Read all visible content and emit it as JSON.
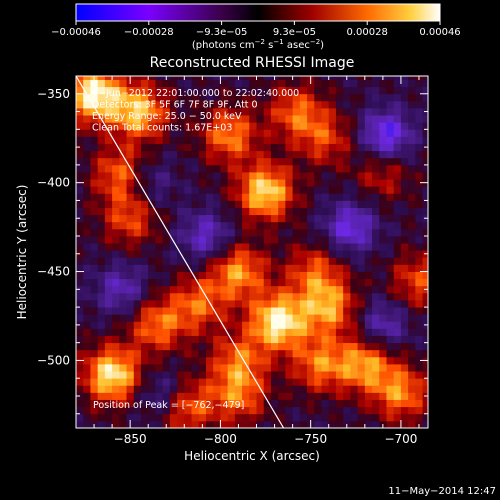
{
  "chart_data": {
    "type": "heatmap",
    "title": "Reconstructed RHESSI Image",
    "xlabel": "Heliocentric X (arcsec)",
    "ylabel": "Heliocentric Y (arcsec)",
    "xlim": [
      -880,
      -685
    ],
    "ylim": [
      -538,
      -340
    ],
    "x_ticks": [
      {
        "value": -850,
        "label": "−850"
      },
      {
        "value": -800,
        "label": "−800"
      },
      {
        "value": -750,
        "label": "−750"
      },
      {
        "value": -700,
        "label": "−700"
      }
    ],
    "y_ticks": [
      {
        "value": -350,
        "label": "−350"
      },
      {
        "value": -400,
        "label": "−400"
      },
      {
        "value": -450,
        "label": "−450"
      },
      {
        "value": -500,
        "label": "−500"
      }
    ],
    "colorbar": {
      "range": [
        -0.00046,
        0.00046
      ],
      "tick_labels": [
        "−0.00046",
        "−0.00028",
        "−9.3e−05",
        "9.3e−05",
        "0.00028",
        "0.00046"
      ],
      "unit_prefix": "(photons cm",
      "unit_exp1": "−2",
      "unit_mid": " s",
      "unit_exp2": "−1",
      "unit_mid2": " asec",
      "unit_exp3": "−2",
      "unit_suffix": ")"
    },
    "annotations": [
      "7−Jun−2012 22:01:00.000 to 22:02:40.000",
      "Detectors: 3F 5F 6F 7F 8F 9F, Att 0",
      "Energy Range: 25.0 − 50.0 keV",
      "Clean     Total counts: 1.67E+03"
    ],
    "peak_label": "Position of Peak = [−762,−479]",
    "peak": [
      -762,
      -479
    ],
    "limb_line": [
      [
        -880,
        -340
      ],
      [
        -765,
        -538
      ]
    ],
    "hot_spots": [
      {
        "x": -870,
        "y": -350,
        "v": 1.0
      },
      {
        "x": -845,
        "y": -360,
        "v": 0.8
      },
      {
        "x": -855,
        "y": -395,
        "v": 0.6
      },
      {
        "x": -795,
        "y": -373,
        "v": 0.65
      },
      {
        "x": -758,
        "y": -360,
        "v": 0.55
      },
      {
        "x": -742,
        "y": -375,
        "v": 0.45
      },
      {
        "x": -775,
        "y": -405,
        "v": 0.9
      },
      {
        "x": -710,
        "y": -395,
        "v": 0.35
      },
      {
        "x": -690,
        "y": -455,
        "v": 0.5
      },
      {
        "x": -790,
        "y": -450,
        "v": 0.7
      },
      {
        "x": -812,
        "y": -468,
        "v": 0.55
      },
      {
        "x": -768,
        "y": -478,
        "v": 1.0
      },
      {
        "x": -740,
        "y": -470,
        "v": 0.7
      },
      {
        "x": -748,
        "y": -450,
        "v": 0.5
      },
      {
        "x": -850,
        "y": -420,
        "v": 0.5
      },
      {
        "x": -860,
        "y": -508,
        "v": 0.95
      },
      {
        "x": -835,
        "y": -480,
        "v": 0.6
      },
      {
        "x": -820,
        "y": -525,
        "v": 0.7
      },
      {
        "x": -790,
        "y": -520,
        "v": 0.55
      },
      {
        "x": -745,
        "y": -502,
        "v": 0.6
      },
      {
        "x": -720,
        "y": -502,
        "v": 0.7
      },
      {
        "x": -700,
        "y": -518,
        "v": 0.65
      },
      {
        "x": -790,
        "y": -500,
        "v": 0.55
      }
    ],
    "cold_spots": [
      {
        "x": -708,
        "y": -373,
        "v": 0.7
      },
      {
        "x": -728,
        "y": -425,
        "v": 0.6
      },
      {
        "x": -808,
        "y": -430,
        "v": 0.5
      },
      {
        "x": -855,
        "y": -460,
        "v": 0.45
      },
      {
        "x": -830,
        "y": -520,
        "v": 0.5
      },
      {
        "x": -710,
        "y": -480,
        "v": 0.45
      },
      {
        "x": -840,
        "y": -400,
        "v": 0.35
      }
    ]
  },
  "footer": {
    "timestamp": "11−May−2014 12:47"
  }
}
